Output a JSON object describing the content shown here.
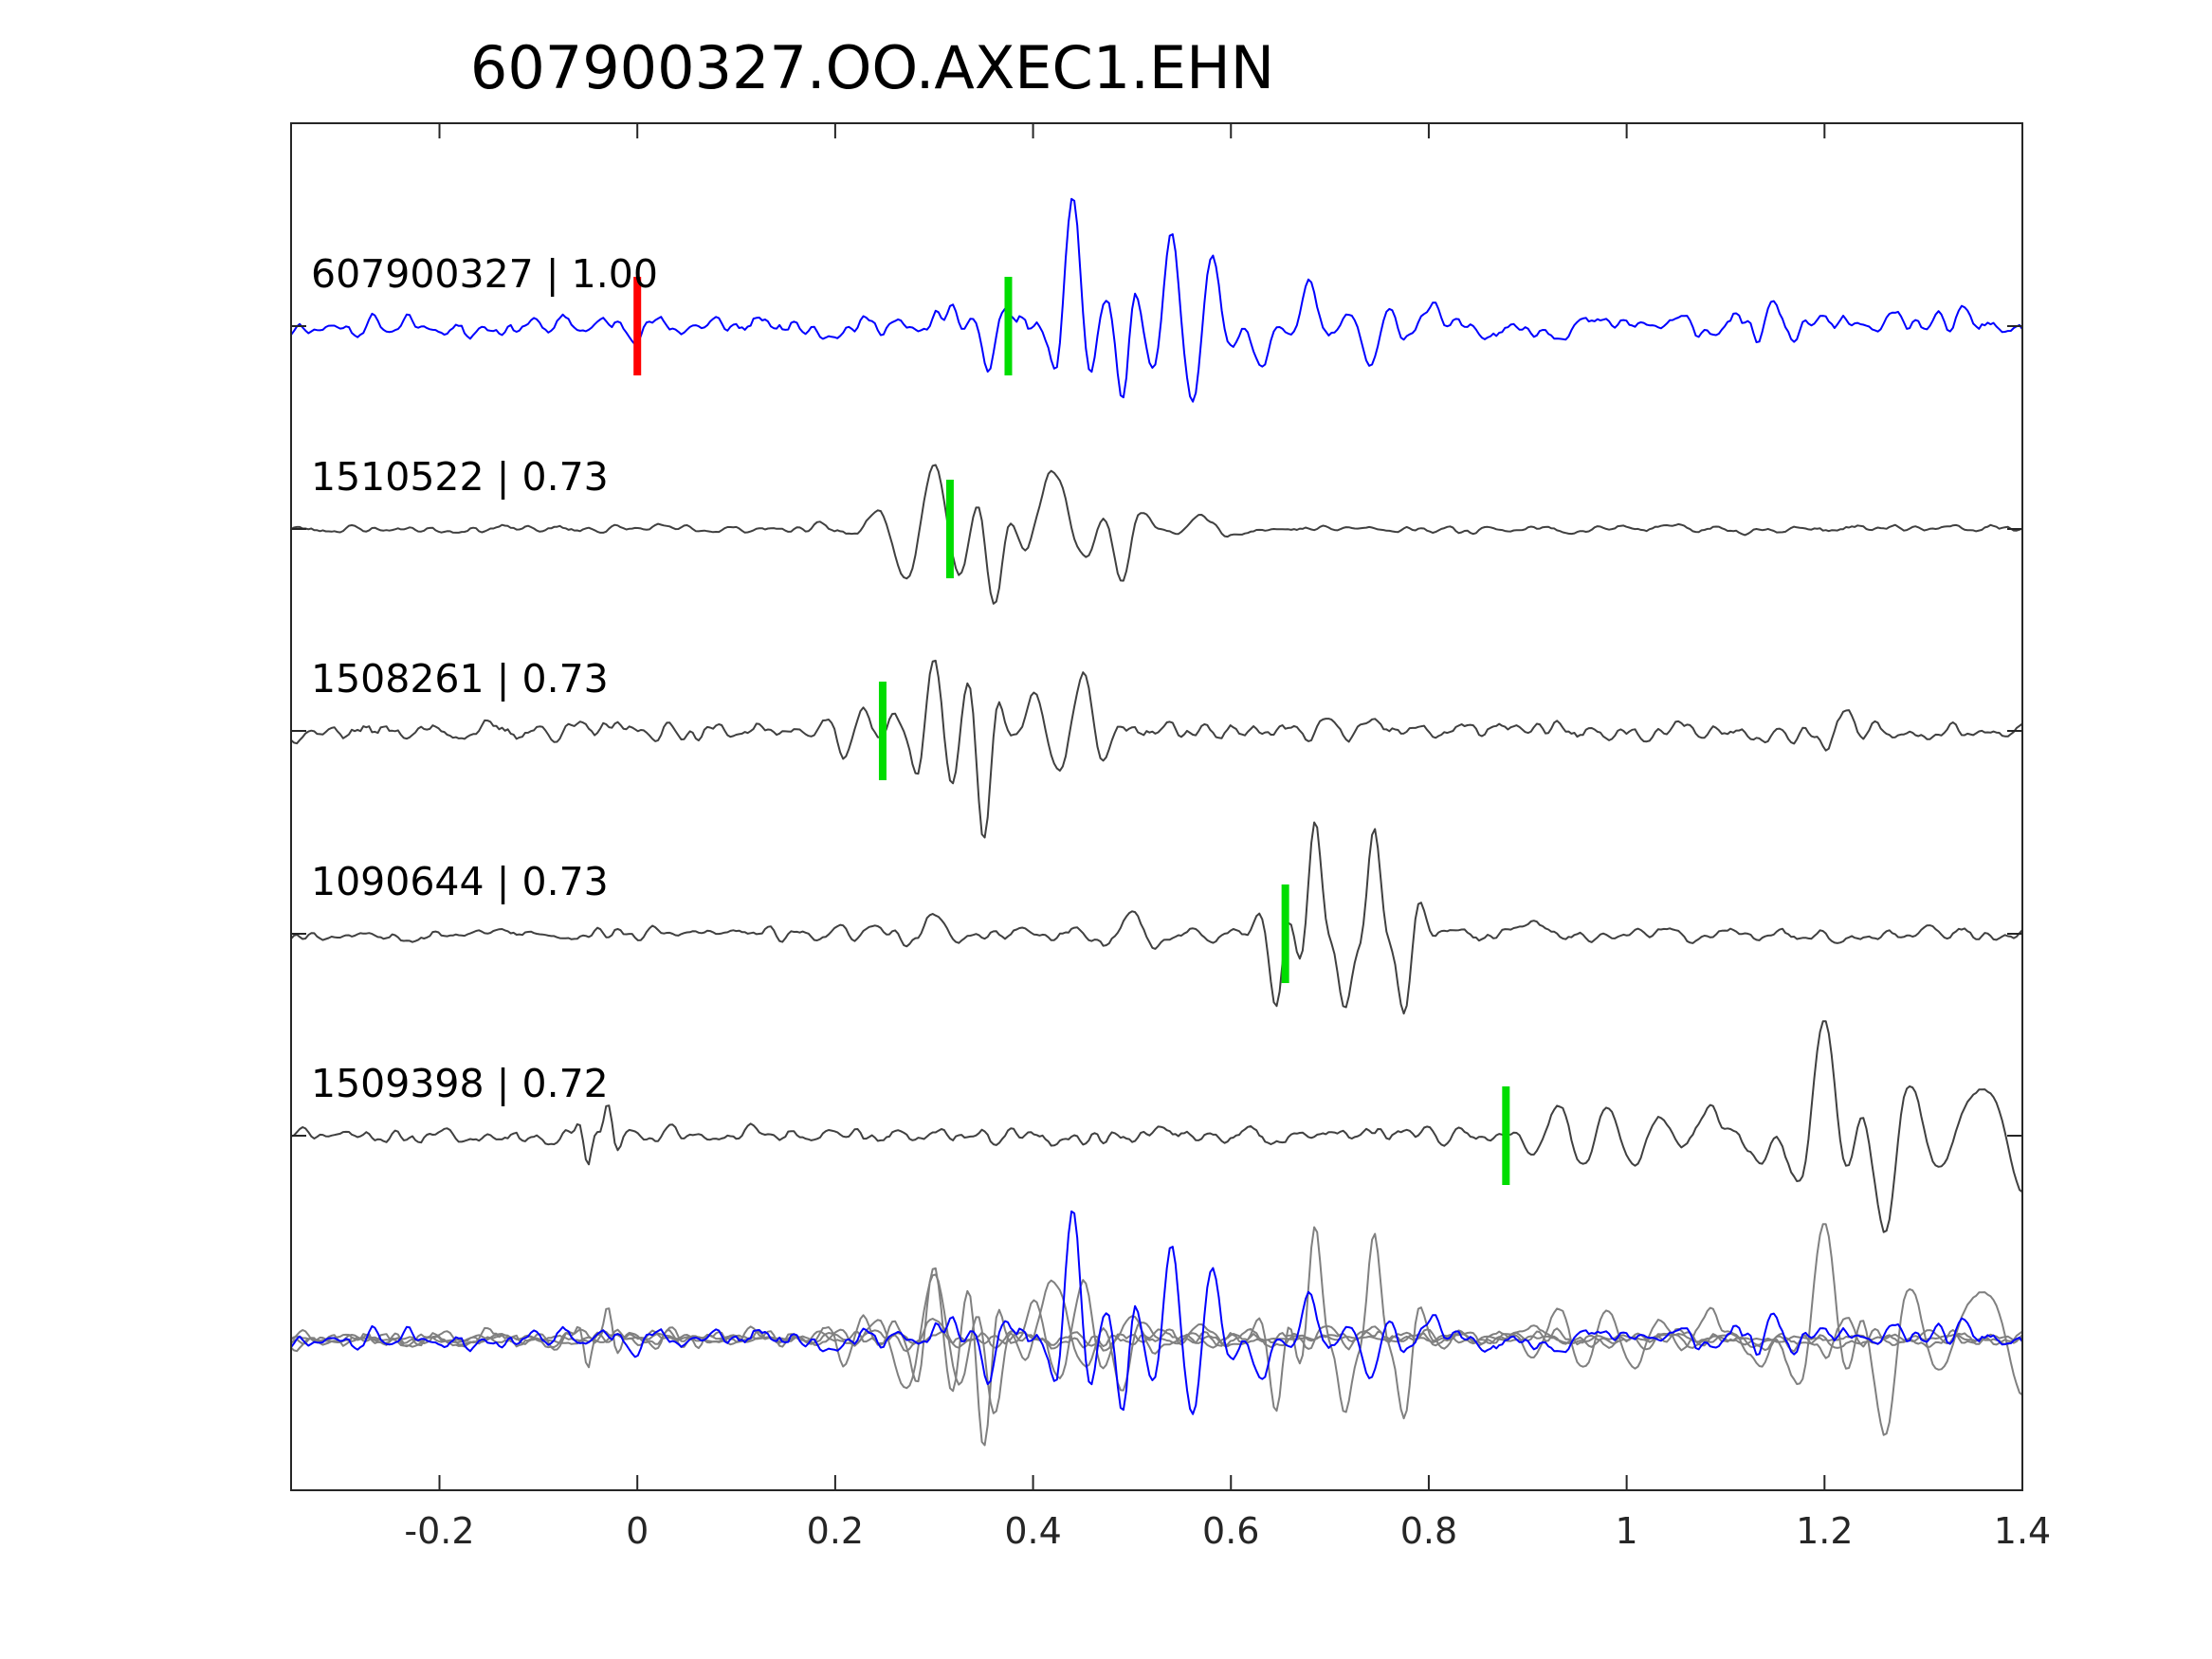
{
  "chart_data": {
    "type": "line",
    "title": "607900327.OO.AXEC1.EHN",
    "xlabel": "",
    "ylabel": "",
    "xlim": [
      -0.35,
      1.4
    ],
    "xticks": [
      -0.2,
      0,
      0.2,
      0.4,
      0.6,
      0.8,
      1,
      1.2,
      1.4
    ],
    "xtick_labels": [
      "-0.2",
      "0",
      "0.2",
      "0.4",
      "0.6",
      "0.8",
      "1",
      "1.2",
      "1.4"
    ],
    "grid": false,
    "colors": {
      "master": "#0000ff",
      "template": "#404040",
      "overlay_template": "#808080",
      "reference_pick": "#ff0000",
      "pick": "#00dd00",
      "axis": "#262626"
    },
    "reference_pick": 0.0,
    "traces": [
      {
        "label": "607900327 | 1.00",
        "id": "607900327",
        "cc": 1.0,
        "pick": 0.375,
        "master": true,
        "seed": 11,
        "amp": 0.07,
        "wavelets": [
          [
            0.31,
            0.035,
            0.05,
            0.06
          ],
          [
            0.355,
            0.02,
            0.012,
            -0.3
          ],
          [
            0.44,
            0.022,
            0.014,
            0.85
          ],
          [
            0.49,
            0.02,
            0.012,
            -0.55
          ],
          [
            0.54,
            0.025,
            0.02,
            0.55
          ],
          [
            0.58,
            0.025,
            0.02,
            0.4
          ],
          [
            0.63,
            0.03,
            0.02,
            -0.35
          ],
          [
            0.68,
            0.025,
            0.02,
            0.3
          ],
          [
            0.74,
            0.03,
            0.015,
            -0.3
          ],
          [
            0.8,
            0.03,
            0.02,
            0.12
          ],
          [
            1.15,
            0.02,
            0.015,
            0.15
          ],
          [
            1.34,
            0.02,
            0.015,
            0.1
          ]
        ]
      },
      {
        "label": "1510522 | 0.73",
        "id": "1510522",
        "cc": 0.73,
        "pick": 0.316,
        "master": false,
        "seed": 23,
        "amp": 0.025,
        "wavelets": [
          [
            0.3,
            0.03,
            0.04,
            0.45
          ],
          [
            0.36,
            0.025,
            0.015,
            -0.7
          ],
          [
            0.42,
            0.04,
            0.03,
            0.4
          ],
          [
            0.49,
            0.025,
            0.015,
            -0.38
          ],
          [
            0.57,
            0.03,
            0.02,
            0.1
          ]
        ]
      },
      {
        "label": "1508261 | 0.73",
        "id": "1508261",
        "cc": 0.73,
        "pick": 0.248,
        "master": false,
        "seed": 37,
        "amp": 0.055,
        "wavelets": [
          [
            0.21,
            0.02,
            0.025,
            -0.2
          ],
          [
            0.3,
            0.02,
            0.02,
            0.55
          ],
          [
            0.35,
            0.02,
            0.012,
            -0.75
          ],
          [
            0.4,
            0.03,
            0.02,
            0.25
          ],
          [
            0.45,
            0.025,
            0.02,
            0.35
          ],
          [
            0.7,
            0.02,
            0.02,
            0.08
          ],
          [
            1.22,
            0.02,
            0.02,
            0.12
          ]
        ]
      },
      {
        "label": "1090644 | 0.73",
        "id": "1090644",
        "cc": 0.73,
        "pick": 0.655,
        "master": false,
        "seed": 53,
        "amp": 0.04,
        "wavelets": [
          [
            0.3,
            0.03,
            0.02,
            0.15
          ],
          [
            0.5,
            0.03,
            0.03,
            0.15
          ],
          [
            0.645,
            0.02,
            0.012,
            -0.5
          ],
          [
            0.685,
            0.02,
            0.012,
            0.8
          ],
          [
            0.715,
            0.02,
            0.012,
            -0.55
          ],
          [
            0.745,
            0.02,
            0.012,
            0.75
          ],
          [
            0.775,
            0.02,
            0.012,
            -0.6
          ],
          [
            0.9,
            0.05,
            0.05,
            0.05
          ],
          [
            1.1,
            0.03,
            0.03,
            0.05
          ]
        ]
      },
      {
        "label": "1509398 | 0.72",
        "id": "1509398",
        "cc": 0.72,
        "pick": 0.878,
        "master": false,
        "seed": 71,
        "amp": 0.05,
        "wavelets": [
          [
            -0.05,
            0.012,
            0.008,
            -0.2
          ],
          [
            -0.03,
            0.012,
            0.008,
            0.22
          ],
          [
            0.93,
            0.03,
            0.03,
            0.2
          ],
          [
            1.01,
            0.03,
            0.025,
            -0.25
          ],
          [
            1.08,
            0.03,
            0.03,
            0.15
          ],
          [
            1.14,
            0.04,
            0.03,
            -0.22
          ],
          [
            1.2,
            0.03,
            0.025,
            0.85
          ],
          [
            1.26,
            0.03,
            0.025,
            -0.75
          ],
          [
            1.355,
            0.045,
            0.03,
            0.35
          ],
          [
            1.4,
            0.03,
            0.03,
            -0.25
          ]
        ]
      }
    ]
  }
}
